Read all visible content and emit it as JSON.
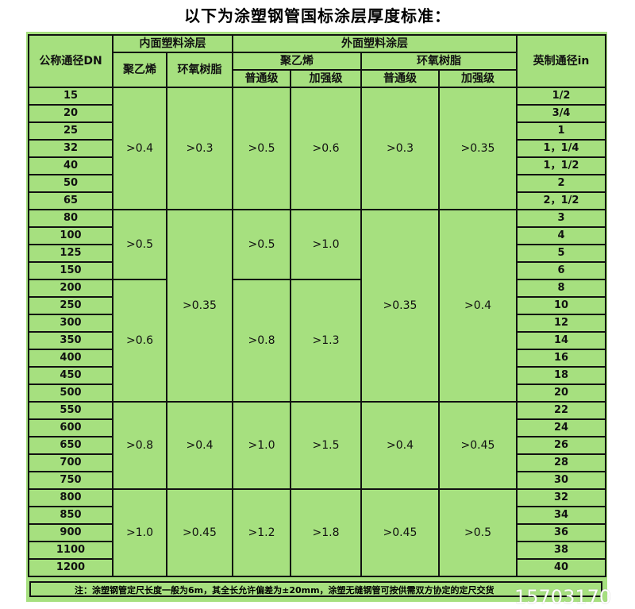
{
  "title": "以下为涂塑钢管国标涂层厚度标准：",
  "headers": {
    "dn": "公称通径DN",
    "inner": "内面塑料涂层",
    "outer": "外面塑料涂层",
    "pe": "聚乙烯",
    "epoxy": "环氧树脂",
    "normal": "普通级",
    "reinforced": "加强级",
    "inch": "英制通径in"
  },
  "dn": [
    "15",
    "20",
    "25",
    "32",
    "40",
    "50",
    "65",
    "80",
    "100",
    "125",
    "150",
    "200",
    "250",
    "300",
    "350",
    "400",
    "450",
    "500",
    "550",
    "600",
    "650",
    "700",
    "750",
    "800",
    "850",
    "900",
    "1100",
    "1200"
  ],
  "inch": [
    "1/2",
    "3/4",
    "1",
    "1，1/4",
    "1，1/2",
    "2",
    "2，1/2",
    "3",
    "4",
    "5",
    "6",
    "8",
    "10",
    "12",
    "14",
    "16",
    "18",
    "20",
    "22",
    "24",
    "26",
    "28",
    "30",
    "32",
    "34",
    "36",
    "38",
    "40"
  ],
  "values": {
    "inner_pe": [
      ">0.4",
      ">0.5",
      ">0.6",
      ">0.8",
      ">1.0"
    ],
    "inner_epoxy": [
      ">0.3",
      ">0.35",
      ">0.4",
      ">0.45"
    ],
    "outer_pe_normal": [
      ">0.5",
      ">0.5",
      ">0.8",
      ">1.0",
      ">1.2"
    ],
    "outer_pe_reinforced": [
      ">0.6",
      ">1.0",
      ">1.3",
      ">1.5",
      ">1.8"
    ],
    "outer_epoxy_normal": [
      ">0.3",
      ">0.35",
      ">0.4",
      ">0.45"
    ],
    "outer_epoxy_reinforced": [
      ">0.35",
      ">0.4",
      ">0.45",
      ">0.5"
    ]
  },
  "note": "注：涂塑钢管定尺长度一般为6m，其全长允许偏差为±20mm，涂塑无缝钢管可按供需双方协定的定尺交货",
  "watermark": "15703170",
  "colors": {
    "table_bg": "#a6e07f",
    "border": "#111111"
  }
}
